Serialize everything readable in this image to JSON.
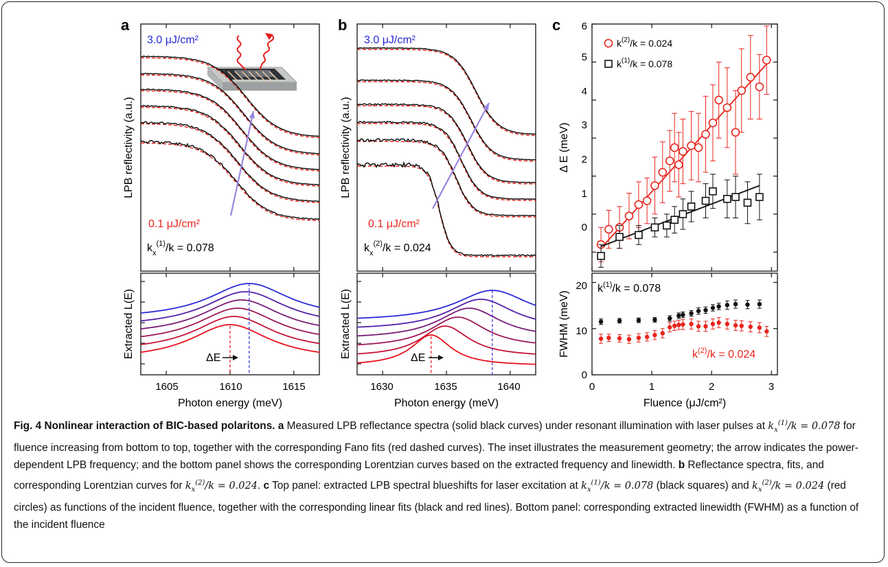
{
  "panel_labels": [
    "a",
    "b",
    "c"
  ],
  "panel_a": {
    "top_label_high": "3.0 μJ/cm²",
    "top_label_low": "0.1 μJ/cm²",
    "k_label_main": "k",
    "k_label_sub": "x",
    "k_label_sup": "(1)",
    "k_label_rest": "/k = 0.078",
    "ylabel_top": "LPB reflectivity (a.u.)",
    "ylabel_bottom": "Extracted  L(E)",
    "xlabel": "Photon energy (meV)",
    "delta_label": "ΔE",
    "xticks": [
      "1605",
      "1610",
      "1615"
    ]
  },
  "panel_b": {
    "top_label_high": "3.0 μJ/cm²",
    "top_label_low": "0.1 μJ/cm²",
    "k_label_main": "k",
    "k_label_sub": "x",
    "k_label_sup": "(2)",
    "k_label_rest": "/k = 0.024",
    "ylabel_top": "LPB reflectivity (a.u.)",
    "ylabel_bottom": "Extracted  L(E)",
    "xlabel": "Photon energy (meV)",
    "delta_label": "ΔE",
    "xticks": [
      "1630",
      "1635",
      "1640"
    ]
  },
  "panel_c": {
    "ylabel_top": "Δ E (meV)",
    "ylabel_bottom": "FWHM (meV)",
    "xlabel": "Fluence (μJ/cm²)",
    "legend_red": "k",
    "legend_red_sup": "(2)",
    "legend_red_rest": "/k = 0.024",
    "legend_black": "k",
    "legend_black_sup": "(1)",
    "legend_black_rest": "/k = 0.078",
    "bottom_label_black": "k",
    "bottom_label_black_sup": "(1)",
    "bottom_label_black_rest": "/k = 0.078",
    "bottom_label_red": "k",
    "bottom_label_red_sup": "(2)",
    "bottom_label_red_rest": "/k = 0.024",
    "xticks": [
      "0",
      "1",
      "2",
      "3"
    ],
    "yticks_top": [
      "0",
      "1",
      "2",
      "3",
      "4",
      "5",
      "6"
    ],
    "yticks_bottom": [
      "0",
      "10",
      "20"
    ]
  },
  "colors": {
    "red": "#e8241c",
    "black": "#111111",
    "blue": "#2828d8",
    "arrow": "#9a86e0",
    "lorentz": [
      "#e8101c",
      "#c41238",
      "#9c1858",
      "#7a1a78",
      "#5420a8",
      "#2a2ad8"
    ]
  },
  "caption": {
    "fig_label": "Fig. 4 Nonlinear interaction of BIC-based polaritons.",
    "a_label": "a",
    "a_text_1": "Measured LPB reflectance spectra (solid black curves) under resonant illumination with laser pulses at",
    "a_text_2": "for fluence increasing from bottom to top, together with the corresponding Fano fits (red dashed curves). The inset illustrates the measurement geometry; the arrow indicates the power-dependent LPB frequency; and the bottom panel shows the corresponding Lorentzian curves based on the extracted frequency and linewidth.",
    "b_label": "b",
    "b_text_1": "Reflectance spectra, fits, and corresponding Lorentzian curves for",
    "c_label": "c",
    "c_text_1": "Top panel: extracted LPB spectral blueshifts for laser excitation at",
    "c_text_2": "(black squares) and",
    "c_text_3": "(red circles) as functions of the incident fluence, together with the corresponding linear fits (black and red lines). Bottom panel: corresponding extracted linewidth (FWHM) as a function of the incident fluence",
    "math_k1": "k",
    "math_k1_sup": "(1)",
    "math_k1_sub": "x",
    "math_k1_rest": "/k = 0.078",
    "math_k2": "k",
    "math_k2_sup": "(2)",
    "math_k2_sub": "x",
    "math_k2_rest": "/k = 0.024"
  },
  "chart_data": [
    {
      "type": "line",
      "panel": "a-bottom",
      "xlabel": "Photon energy (meV)",
      "ylabel": "Extracted  L(E)",
      "xlim": [
        1603,
        1617
      ],
      "series": [
        {
          "center": 1610.0,
          "width": 7.6
        },
        {
          "center": 1610.3,
          "width": 7.6
        },
        {
          "center": 1610.6,
          "width": 7.7
        },
        {
          "center": 1610.9,
          "width": 7.7
        },
        {
          "center": 1611.2,
          "width": 7.8
        },
        {
          "center": 1611.5,
          "width": 7.8
        }
      ],
      "delta_marker": [
        1610.0,
        1611.5
      ]
    },
    {
      "type": "line",
      "panel": "b-bottom",
      "xlabel": "Photon energy (meV)",
      "ylabel": "Extracted  L(E)",
      "xlim": [
        1628,
        1642
      ],
      "series": [
        {
          "center": 1633.8,
          "width": 3.8
        },
        {
          "center": 1634.9,
          "width": 4.6
        },
        {
          "center": 1635.9,
          "width": 5.4
        },
        {
          "center": 1636.8,
          "width": 6.0
        },
        {
          "center": 1637.7,
          "width": 6.4
        },
        {
          "center": 1638.6,
          "width": 7.0
        }
      ],
      "delta_marker": [
        1633.8,
        1638.6
      ]
    },
    {
      "type": "scatter",
      "panel": "c-top",
      "xlabel": "Fluence (μJ/cm²)",
      "ylabel": "Δ E (meV)",
      "xlim": [
        0,
        3.1
      ],
      "ylim": [
        -0.5,
        6
      ],
      "series": [
        {
          "name": "kx(2)/k = 0.024",
          "marker": "circle",
          "x": [
            0.15,
            0.28,
            0.46,
            0.62,
            0.78,
            0.92,
            1.05,
            1.18,
            1.3,
            1.38,
            1.45,
            1.52,
            1.66,
            1.78,
            1.9,
            2.02,
            2.12,
            2.26,
            2.4,
            2.5,
            2.65,
            2.8,
            2.92
          ],
          "y": [
            0.2,
            0.6,
            0.65,
            0.95,
            1.25,
            1.35,
            1.75,
            2.1,
            2.4,
            2.75,
            2.3,
            2.65,
            2.8,
            2.75,
            3.1,
            3.4,
            4.0,
            3.8,
            3.15,
            4.25,
            4.6,
            4.35,
            5.05
          ],
          "err": [
            0.45,
            0.5,
            0.55,
            0.6,
            0.6,
            0.6,
            0.75,
            0.8,
            0.8,
            0.9,
            0.85,
            0.85,
            0.9,
            0.9,
            1.0,
            1.0,
            1.0,
            1.05,
            1.1,
            1.1,
            1.1,
            0.85,
            0.9
          ],
          "fit": [
            [
              0.15,
              0.1
            ],
            [
              2.92,
              4.95
            ]
          ]
        },
        {
          "name": "kx(1)/k = 0.078",
          "marker": "square",
          "x": [
            0.15,
            0.46,
            0.78,
            1.05,
            1.25,
            1.38,
            1.52,
            1.66,
            1.9,
            2.02,
            2.26,
            2.4,
            2.6,
            2.8
          ],
          "y": [
            -0.1,
            0.4,
            0.45,
            0.65,
            0.7,
            0.85,
            1.0,
            1.2,
            1.35,
            1.6,
            1.4,
            1.45,
            1.3,
            1.45
          ],
          "err": [
            0.3,
            0.3,
            0.25,
            0.25,
            0.3,
            0.35,
            0.4,
            0.4,
            0.45,
            0.45,
            0.5,
            0.55,
            0.55,
            0.6
          ],
          "fit": [
            [
              0.15,
              0.15
            ],
            [
              2.8,
              1.75
            ]
          ]
        }
      ]
    },
    {
      "type": "scatter",
      "panel": "c-bottom",
      "xlabel": "Fluence (μJ/cm²)",
      "ylabel": "FWHM (meV)",
      "xlim": [
        0,
        3.1
      ],
      "ylim": [
        0,
        22
      ],
      "series": [
        {
          "name": "kx(1)/k = 0.078",
          "x": [
            0.15,
            0.46,
            0.78,
            1.05,
            1.3,
            1.45,
            1.52,
            1.66,
            1.78,
            1.9,
            2.02,
            2.12,
            2.26,
            2.4,
            2.6,
            2.8
          ],
          "y": [
            11.5,
            11.7,
            11.8,
            11.9,
            12.2,
            12.8,
            13.0,
            13.3,
            13.8,
            14.0,
            14.5,
            14.8,
            15.1,
            15.3,
            15.2,
            15.3
          ],
          "err": [
            0.6,
            0.5,
            0.5,
            0.5,
            0.6,
            0.6,
            0.6,
            0.6,
            0.7,
            0.7,
            0.7,
            0.7,
            0.9,
            0.9,
            0.9,
            0.9
          ]
        },
        {
          "name": "kx(2)/k = 0.024",
          "x": [
            0.15,
            0.28,
            0.46,
            0.62,
            0.78,
            0.92,
            1.05,
            1.18,
            1.3,
            1.38,
            1.45,
            1.52,
            1.66,
            1.78,
            1.9,
            2.02,
            2.12,
            2.26,
            2.4,
            2.5,
            2.65,
            2.8,
            2.92
          ],
          "y": [
            7.8,
            8.0,
            7.9,
            7.7,
            8.0,
            8.2,
            8.6,
            9.0,
            10.3,
            10.6,
            10.8,
            10.9,
            11.0,
            10.5,
            10.5,
            11.0,
            11.3,
            11.0,
            10.7,
            10.6,
            10.4,
            10.2,
            9.4
          ],
          "err": [
            1.0,
            0.8,
            0.8,
            0.9,
            0.9,
            0.9,
            1.0,
            1.0,
            1.0,
            1.0,
            1.0,
            1.1,
            1.1,
            1.1,
            1.1,
            1.1,
            1.1,
            1.1,
            1.1,
            1.1,
            1.1,
            1.1,
            1.1
          ]
        }
      ]
    }
  ]
}
